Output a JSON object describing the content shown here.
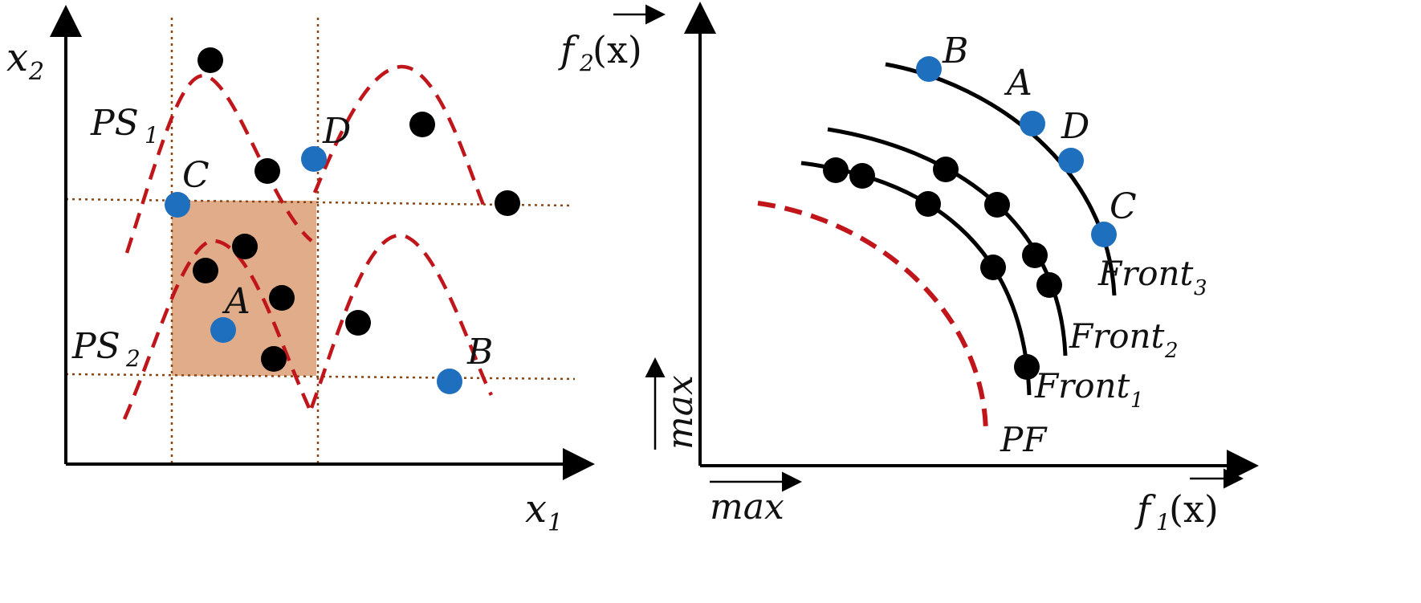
{
  "colors": {
    "solution_black": "#000000",
    "solution_blue": "#1f6fbf",
    "pareto_red": "#c0161b",
    "region_fill": "#e0ac8a",
    "guide_brown": "#8b4513"
  },
  "decision_space": {
    "x_label": "x",
    "x_sub": "1",
    "y_label": "x",
    "y_sub": "2",
    "ps1_main": "PS",
    "ps1_sub": "1",
    "ps2_main": "PS",
    "ps2_sub": "2",
    "point_labels": {
      "A": "A",
      "B": "B",
      "C": "C",
      "D": "D"
    }
  },
  "objective_space": {
    "x_label_f": "f",
    "x_label_sub": "1",
    "x_label_arg": "(x)",
    "y_label_f": "f",
    "y_label_sub": "2",
    "y_label_arg": "(x)",
    "max_x": "max",
    "max_y": "max",
    "point_labels": {
      "A": "A",
      "B": "B",
      "C": "C",
      "D": "D"
    },
    "front1": "Front",
    "front1_sub": "1",
    "front2": "Front",
    "front2_sub": "2",
    "front3": "Front",
    "front3_sub": "3",
    "pf": "PF"
  }
}
